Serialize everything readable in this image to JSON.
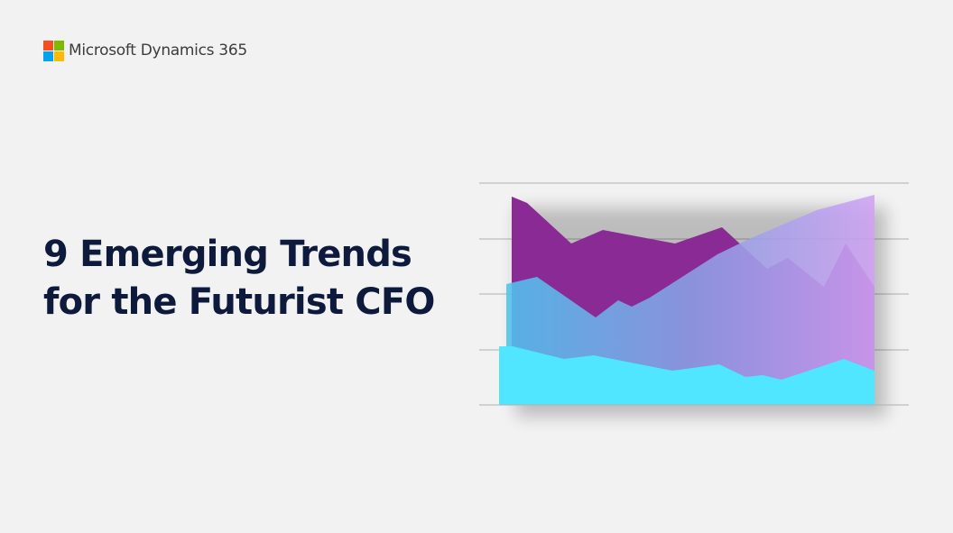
{
  "brand": "Microsoft Dynamics 365",
  "title": {
    "lines": [
      "9 Emerging Trends",
      "for the Futurist CFO"
    ]
  }
}
